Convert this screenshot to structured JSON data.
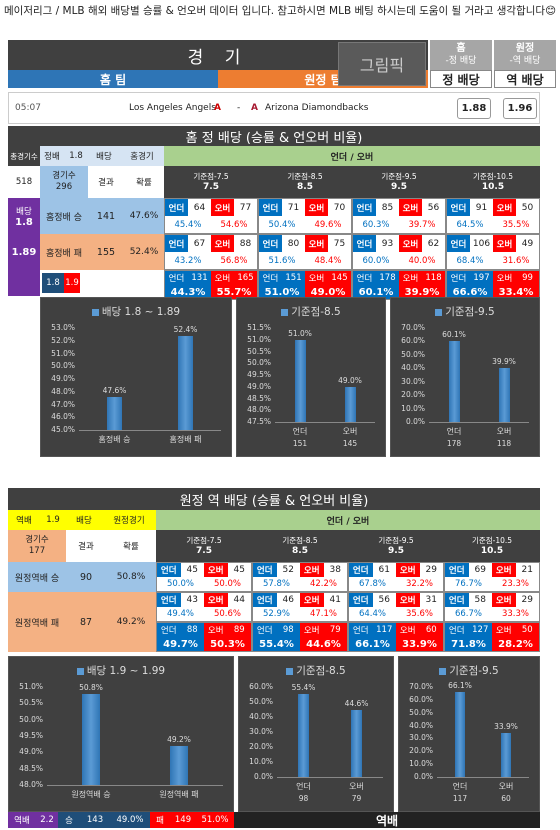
{
  "intro": "메이저리그 / MLB 해외 배당별 승률 & 언오버 데이터 입니다. 참고하시면 MLB 베팅 하시는데 도움이 될 거라고 생각합니다😊",
  "header": {
    "title": "경 기",
    "home_team": "홈 팀",
    "away_team": "원정 팀",
    "logo_text": "그림픽",
    "home_col_top": "홈",
    "home_col_sub": "-정 배당",
    "home_col_bottom": "정 배당",
    "away_col_top": "원정",
    "away_col_sub": "-역 배당",
    "away_col_bottom": "역 배당"
  },
  "match": {
    "time": "05:07",
    "home": "Los Angeles Angels",
    "dash": "-",
    "away": "Arizona Diamondbacks",
    "home_odds": "1.88",
    "away_odds": "1.96"
  },
  "home_section": {
    "title": "홈 정 배당 (승률 & 언오버 비율)",
    "ou_title": "언더 / 오버",
    "h_games_label": "총경기수",
    "h_odds_label": "정배",
    "h_odds": "1.8",
    "h_odds2_label": "배당",
    "h_type": "홈경기",
    "total": "518",
    "games_label": "경기수",
    "games": "296",
    "result_label": "결과",
    "rate_label": "확률",
    "odds_tag": "배당",
    "odds_low": "1.8",
    "odds_high": "1.89",
    "rows": [
      {
        "label": "홈정배 승",
        "count": "141",
        "rate": "47.6%"
      },
      {
        "label": "홈정배 패",
        "count": "155",
        "rate": "52.4%"
      }
    ],
    "foot_low": "1.8",
    "foot_high": "1.9",
    "lines": [
      {
        "label": "기준점-7.5",
        "value": "7.5",
        "win": {
          "u": "64",
          "o": "77",
          "up": "45.4%",
          "op": "54.6%"
        },
        "loss": {
          "u": "67",
          "o": "88",
          "up": "43.2%",
          "op": "56.8%"
        },
        "tot": {
          "u": "131",
          "o": "165",
          "up": "44.3%",
          "op": "55.7%"
        }
      },
      {
        "label": "기준점-8.5",
        "value": "8.5",
        "win": {
          "u": "71",
          "o": "70",
          "up": "50.4%",
          "op": "49.6%"
        },
        "loss": {
          "u": "80",
          "o": "75",
          "up": "51.6%",
          "op": "48.4%"
        },
        "tot": {
          "u": "151",
          "o": "145",
          "up": "51.0%",
          "op": "49.0%"
        }
      },
      {
        "label": "기준점-9.5",
        "value": "9.5",
        "win": {
          "u": "85",
          "o": "56",
          "up": "60.3%",
          "op": "39.7%"
        },
        "loss": {
          "u": "93",
          "o": "62",
          "up": "60.0%",
          "op": "40.0%"
        },
        "tot": {
          "u": "178",
          "o": "118",
          "up": "60.1%",
          "op": "39.9%"
        }
      },
      {
        "label": "기준점-10.5",
        "value": "10.5",
        "win": {
          "u": "91",
          "o": "50",
          "up": "64.5%",
          "op": "35.5%"
        },
        "loss": {
          "u": "106",
          "o": "49",
          "up": "68.4%",
          "op": "31.6%"
        },
        "tot": {
          "u": "197",
          "o": "99",
          "up": "66.6%",
          "op": "33.4%"
        }
      }
    ]
  },
  "away_section": {
    "title": "원정 역 배당 (승률 & 언오버 비율)",
    "ou_title": "언더 / 오버",
    "h_odds_label": "역배",
    "h_odds": "1.9",
    "h_odds2_label": "배당",
    "h_type": "원정경기",
    "games_label": "경기수",
    "games": "177",
    "result_label": "결과",
    "rate_label": "확률",
    "rows": [
      {
        "label": "원정역배 승",
        "count": "90",
        "rate": "50.8%"
      },
      {
        "label": "원정역배 패",
        "count": "87",
        "rate": "49.2%"
      }
    ],
    "lines": [
      {
        "label": "기준점-7.5",
        "value": "7.5",
        "win": {
          "u": "45",
          "o": "45",
          "up": "50.0%",
          "op": "50.0%"
        },
        "loss": {
          "u": "43",
          "o": "44",
          "up": "49.4%",
          "op": "50.6%"
        },
        "tot": {
          "u": "88",
          "o": "89",
          "up": "49.7%",
          "op": "50.3%"
        }
      },
      {
        "label": "기준점-8.5",
        "value": "8.5",
        "win": {
          "u": "52",
          "o": "38",
          "up": "57.8%",
          "op": "42.2%"
        },
        "loss": {
          "u": "46",
          "o": "41",
          "up": "52.9%",
          "op": "47.1%"
        },
        "tot": {
          "u": "98",
          "o": "79",
          "up": "55.4%",
          "op": "44.6%"
        }
      },
      {
        "label": "기준점-9.5",
        "value": "9.5",
        "win": {
          "u": "61",
          "o": "29",
          "up": "67.8%",
          "op": "32.2%"
        },
        "loss": {
          "u": "56",
          "o": "31",
          "up": "64.4%",
          "op": "35.6%"
        },
        "tot": {
          "u": "117",
          "o": "60",
          "up": "66.1%",
          "op": "33.9%"
        }
      },
      {
        "label": "기준점-10.5",
        "value": "10.5",
        "win": {
          "u": "69",
          "o": "21",
          "up": "76.7%",
          "op": "23.3%"
        },
        "loss": {
          "u": "58",
          "o": "29",
          "up": "66.7%",
          "op": "33.3%"
        },
        "tot": {
          "u": "127",
          "o": "50",
          "up": "71.8%",
          "op": "28.2%"
        }
      }
    ],
    "footer": {
      "tag": "역배",
      "odds": "2.2",
      "win_label": "승",
      "win": "143",
      "win_rate": "49.0%",
      "loss_label": "패",
      "loss": "149",
      "loss_rate": "51.0%",
      "bottom_label": "역배"
    }
  },
  "u_label": "언더",
  "o_label": "오버",
  "chart_data": [
    {
      "type": "bar",
      "title": "배당 1.8 ~ 1.89",
      "categories": [
        "홈정배 승",
        "홈정배 패"
      ],
      "values": [
        47.6,
        52.4
      ],
      "labels": [
        "47.6%",
        "52.4%"
      ],
      "ylim": [
        45.0,
        53.0
      ],
      "ticks": [
        "53.0%",
        "52.0%",
        "51.0%",
        "50.0%",
        "49.0%",
        "48.0%",
        "47.0%",
        "46.0%",
        "45.0%"
      ],
      "sub": [
        "",
        ""
      ]
    },
    {
      "type": "bar",
      "title": "기준점-8.5",
      "categories": [
        "언더",
        "오버"
      ],
      "values": [
        51.0,
        49.0
      ],
      "labels": [
        "51.0%",
        "49.0%"
      ],
      "ylim": [
        47.5,
        51.5
      ],
      "ticks": [
        "51.5%",
        "51.0%",
        "50.5%",
        "50.0%",
        "49.5%",
        "49.0%",
        "48.5%",
        "48.0%",
        "47.5%"
      ],
      "sub": [
        "151",
        "145"
      ]
    },
    {
      "type": "bar",
      "title": "기준점-9.5",
      "categories": [
        "언더",
        "오버"
      ],
      "values": [
        60.1,
        39.9
      ],
      "labels": [
        "60.1%",
        "39.9%"
      ],
      "ylim": [
        0,
        70
      ],
      "ticks": [
        "70.0%",
        "60.0%",
        "50.0%",
        "40.0%",
        "30.0%",
        "20.0%",
        "10.0%",
        "0.0%"
      ],
      "sub": [
        "178",
        "118"
      ]
    },
    {
      "type": "bar",
      "title": "배당 1.9 ~ 1.99",
      "categories": [
        "원정역배 승",
        "원정역배 패"
      ],
      "values": [
        50.8,
        49.2
      ],
      "labels": [
        "50.8%",
        "49.2%"
      ],
      "ylim": [
        48.0,
        51.0
      ],
      "ticks": [
        "51.0%",
        "50.5%",
        "50.0%",
        "49.5%",
        "49.0%",
        "48.5%",
        "48.0%"
      ],
      "sub": [
        "",
        ""
      ]
    },
    {
      "type": "bar",
      "title": "기준점-8.5",
      "categories": [
        "언더",
        "오버"
      ],
      "values": [
        55.4,
        44.6
      ],
      "labels": [
        "55.4%",
        "44.6%"
      ],
      "ylim": [
        0,
        60
      ],
      "ticks": [
        "60.0%",
        "50.0%",
        "40.0%",
        "30.0%",
        "20.0%",
        "10.0%",
        "0.0%"
      ],
      "sub": [
        "98",
        "79"
      ]
    },
    {
      "type": "bar",
      "title": "기준점-9.5",
      "categories": [
        "언더",
        "오버"
      ],
      "values": [
        66.1,
        33.9
      ],
      "labels": [
        "66.1%",
        "33.9%"
      ],
      "ylim": [
        0,
        70
      ],
      "ticks": [
        "70.0%",
        "60.0%",
        "50.0%",
        "40.0%",
        "30.0%",
        "20.0%",
        "10.0%",
        "0.0%"
      ],
      "sub": [
        "117",
        "60"
      ]
    }
  ]
}
